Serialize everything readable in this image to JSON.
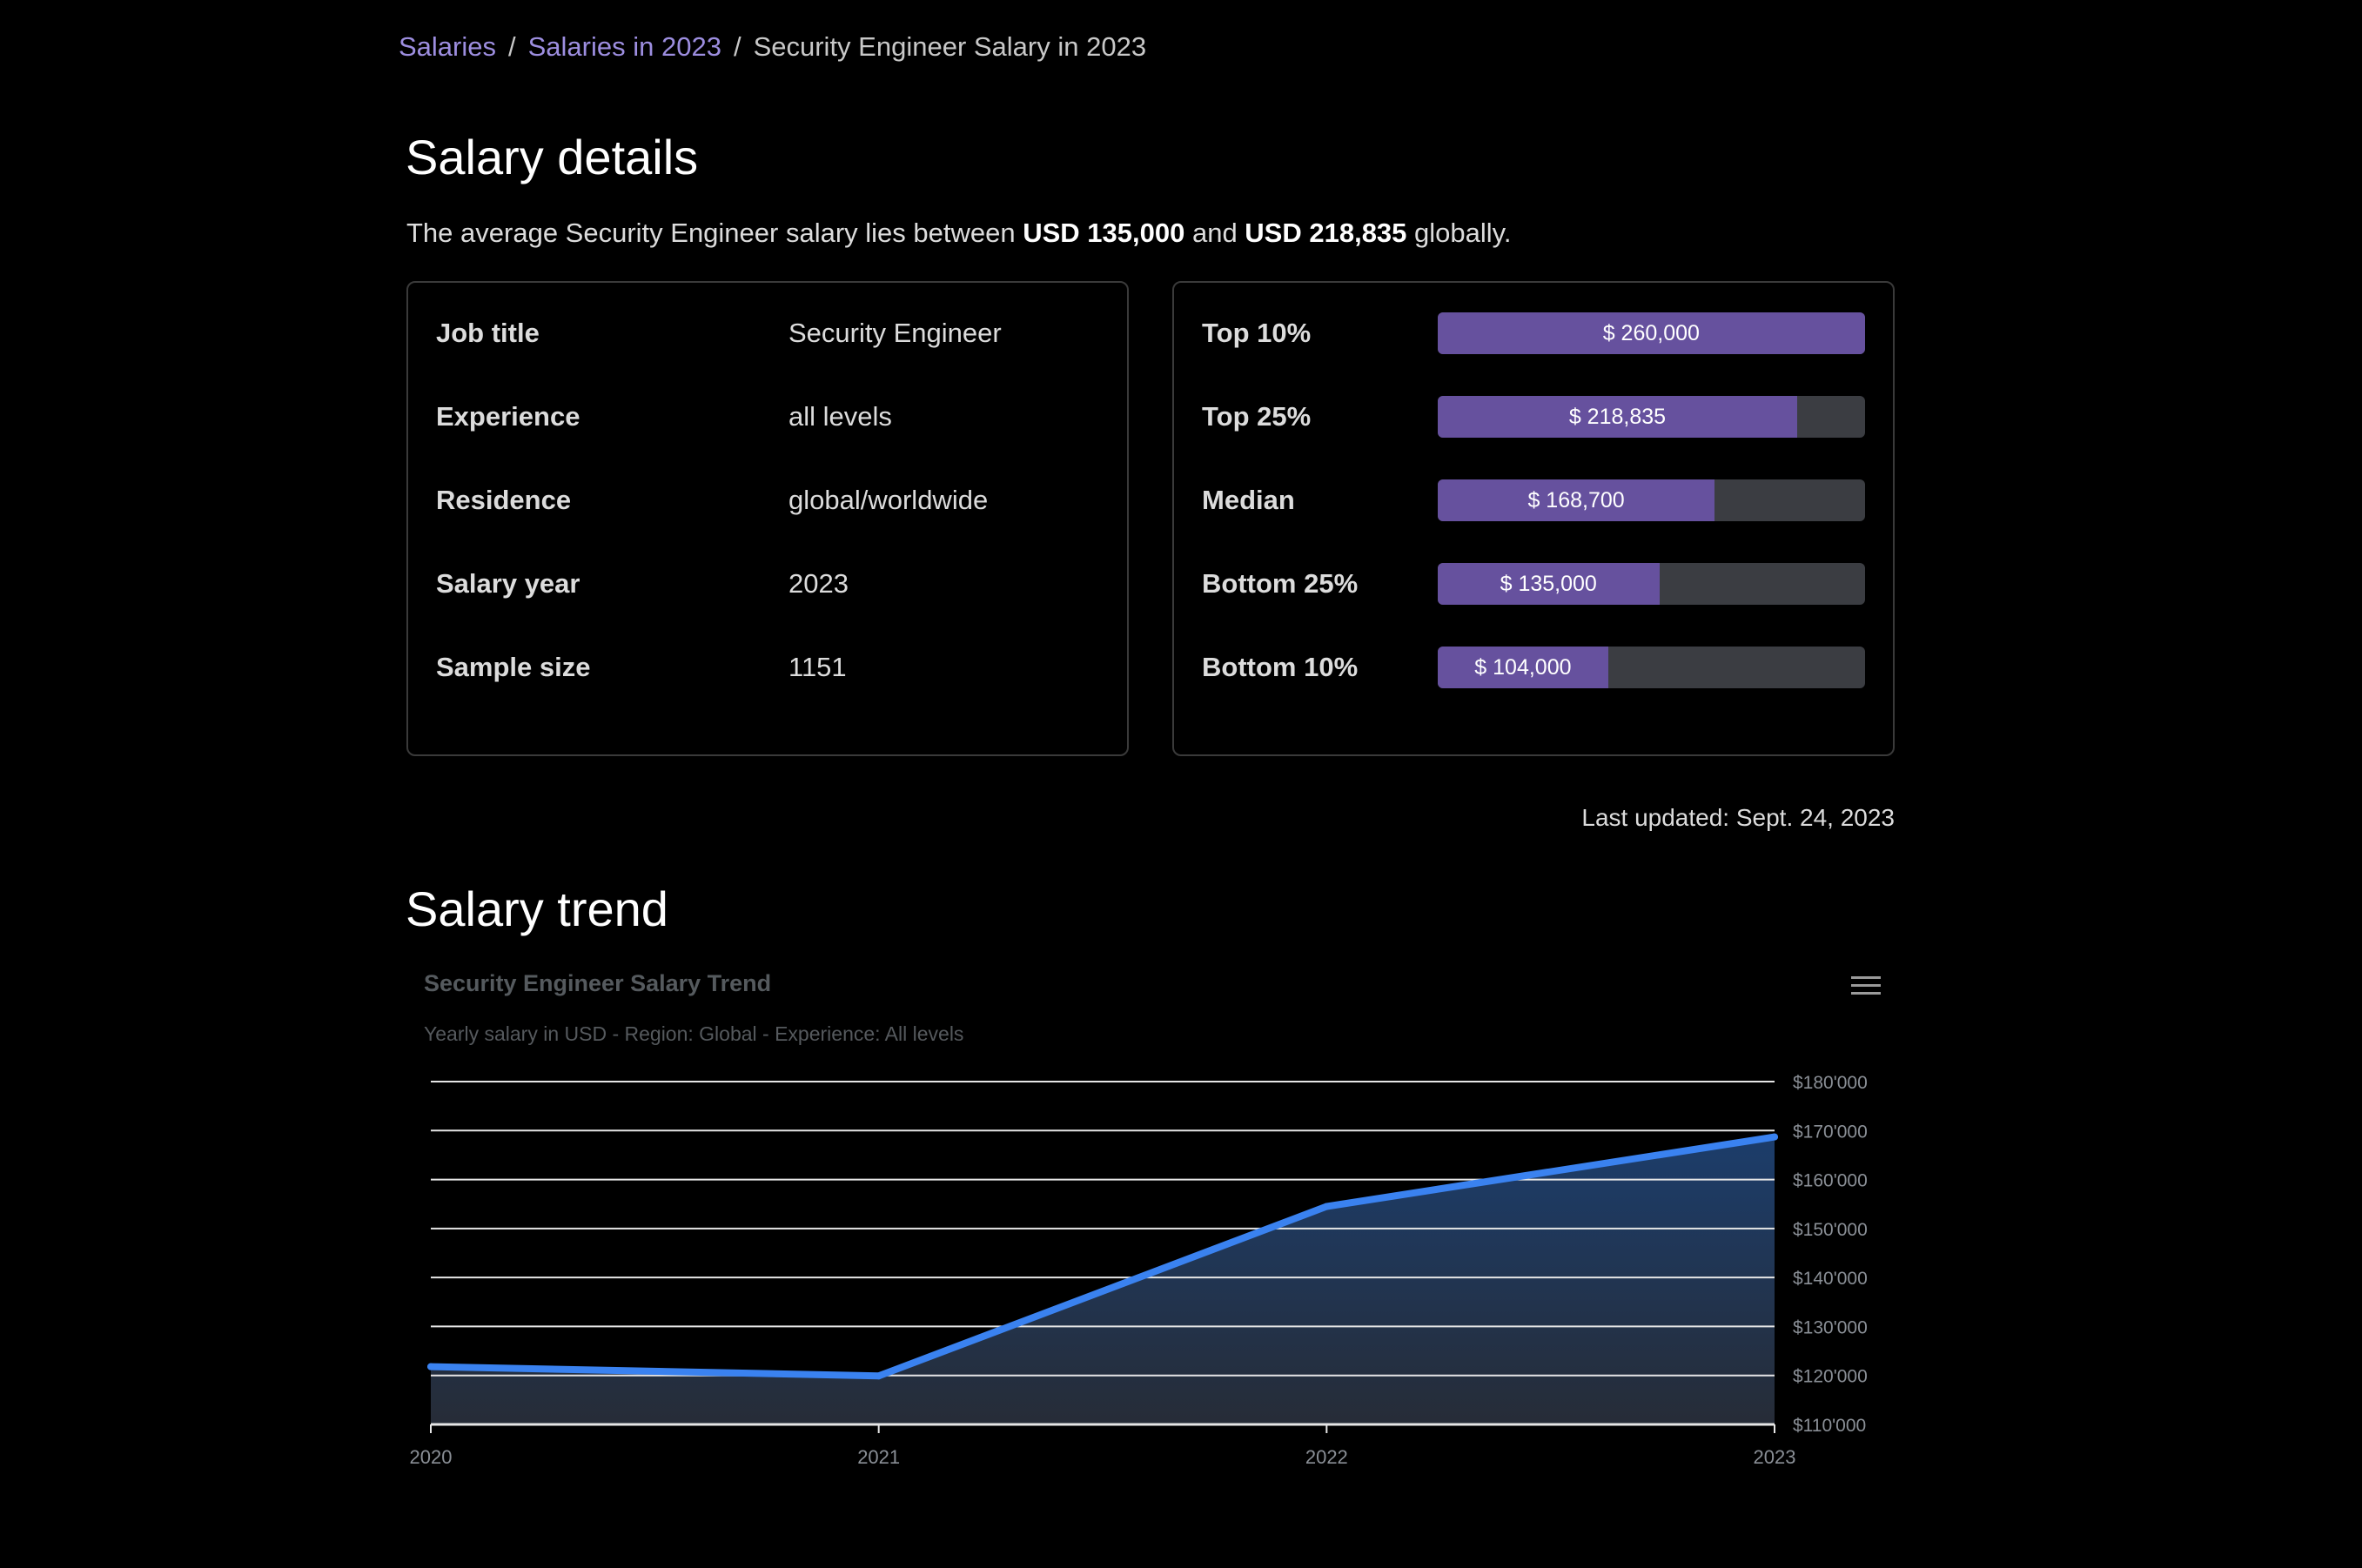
{
  "breadcrumb": {
    "items": [
      "Salaries",
      "Salaries in 2023"
    ],
    "current": "Security Engineer Salary in 2023",
    "separator": "/"
  },
  "details": {
    "heading": "Salary details",
    "summary_prefix": "The average Security Engineer salary lies between ",
    "low": "USD 135,000",
    "and_word": " and ",
    "high": "USD 218,835",
    "summary_suffix": " globally."
  },
  "info_table": [
    {
      "label": "Job title",
      "value": "Security Engineer"
    },
    {
      "label": "Experience",
      "value": "all levels"
    },
    {
      "label": "Residence",
      "value": "global/worldwide"
    },
    {
      "label": "Salary year",
      "value": "2023"
    },
    {
      "label": "Sample size",
      "value": "1151"
    }
  ],
  "percentiles": [
    {
      "label": "Top 10%",
      "value_text": "$ 260,000",
      "amount": 260000
    },
    {
      "label": "Top 25%",
      "value_text": "$ 218,835",
      "amount": 218835
    },
    {
      "label": "Median",
      "value_text": "$ 168,700",
      "amount": 168700
    },
    {
      "label": "Bottom 25%",
      "value_text": "$ 135,000",
      "amount": 135000
    },
    {
      "label": "Bottom 10%",
      "value_text": "$ 104,000",
      "amount": 104000
    }
  ],
  "last_updated": "Last updated: Sept. 24, 2023",
  "trend": {
    "heading": "Salary trend",
    "menu_icon": "hamburger-menu-icon"
  },
  "colors": {
    "accent": "#9d8ee0",
    "bar_fill": "#66519e",
    "bar_track": "#3b3d42",
    "line": "#3a82f0",
    "area_top": "#1c3d6b",
    "area_bottom": "#262c37"
  },
  "chart_data": {
    "type": "area",
    "title": "Security Engineer Salary Trend",
    "subtitle": "Yearly salary in USD - Region: Global - Experience: All levels",
    "x": [
      "2020",
      "2021",
      "2022",
      "2023"
    ],
    "series": [
      {
        "values": [
          121800,
          119900,
          154500,
          168700
        ]
      }
    ],
    "ylim": [
      110000,
      180000
    ],
    "yticks": [
      110000,
      120000,
      130000,
      140000,
      150000,
      160000,
      170000,
      180000
    ],
    "ytick_labels": [
      "$110'000",
      "$120'000",
      "$130'000",
      "$140'000",
      "$150'000",
      "$160'000",
      "$170'000",
      "$180'000"
    ],
    "y_axis_side": "right",
    "grid": true
  }
}
